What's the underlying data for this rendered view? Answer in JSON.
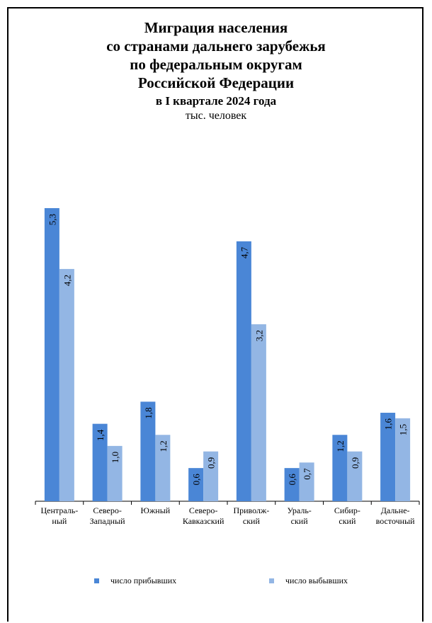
{
  "title": {
    "lines": [
      "Миграция  населения",
      "со странами  дальнего зарубежья",
      "по федеральным  округам",
      "Российской  Федерации"
    ],
    "subtitle": "в I квартале 2024 года",
    "unit": "тыс. человек"
  },
  "colors": {
    "arrived": "#4a86d6",
    "departed": "#93b6e4"
  },
  "chart_data": {
    "type": "bar",
    "title": "Миграция населения со странами дальнего зарубежья по федеральным округам Российской Федерации",
    "subtitle": "в I квартале 2024 года",
    "ylabel": "тыс. человек",
    "ylim": [
      0,
      5.3
    ],
    "grid": false,
    "legend": "bottom",
    "categories": [
      [
        "Централь-",
        "ный"
      ],
      [
        "Северо-",
        "Западный"
      ],
      [
        "Южный"
      ],
      [
        "Северо-",
        "Кавказский"
      ],
      [
        "Приволж-",
        "ский"
      ],
      [
        "Ураль-",
        "ский"
      ],
      [
        "Сибир-",
        "ский"
      ],
      [
        "Дальне-",
        "восточный"
      ]
    ],
    "series": [
      {
        "name": "число прибывших",
        "values": [
          5.3,
          1.4,
          1.8,
          0.6,
          4.7,
          0.6,
          1.2,
          1.6
        ]
      },
      {
        "name": "число выбывших",
        "values": [
          4.2,
          1.0,
          1.2,
          0.9,
          3.2,
          0.7,
          0.9,
          1.5
        ]
      }
    ],
    "value_labels": [
      [
        "5,3",
        "1,4",
        "1,8",
        "0,6",
        "4,7",
        "0,6",
        "1,2",
        "1,6"
      ],
      [
        "4,2",
        "1,0",
        "1,2",
        "0,9",
        "3,2",
        "0,7",
        "0,9",
        "1,5"
      ]
    ]
  }
}
